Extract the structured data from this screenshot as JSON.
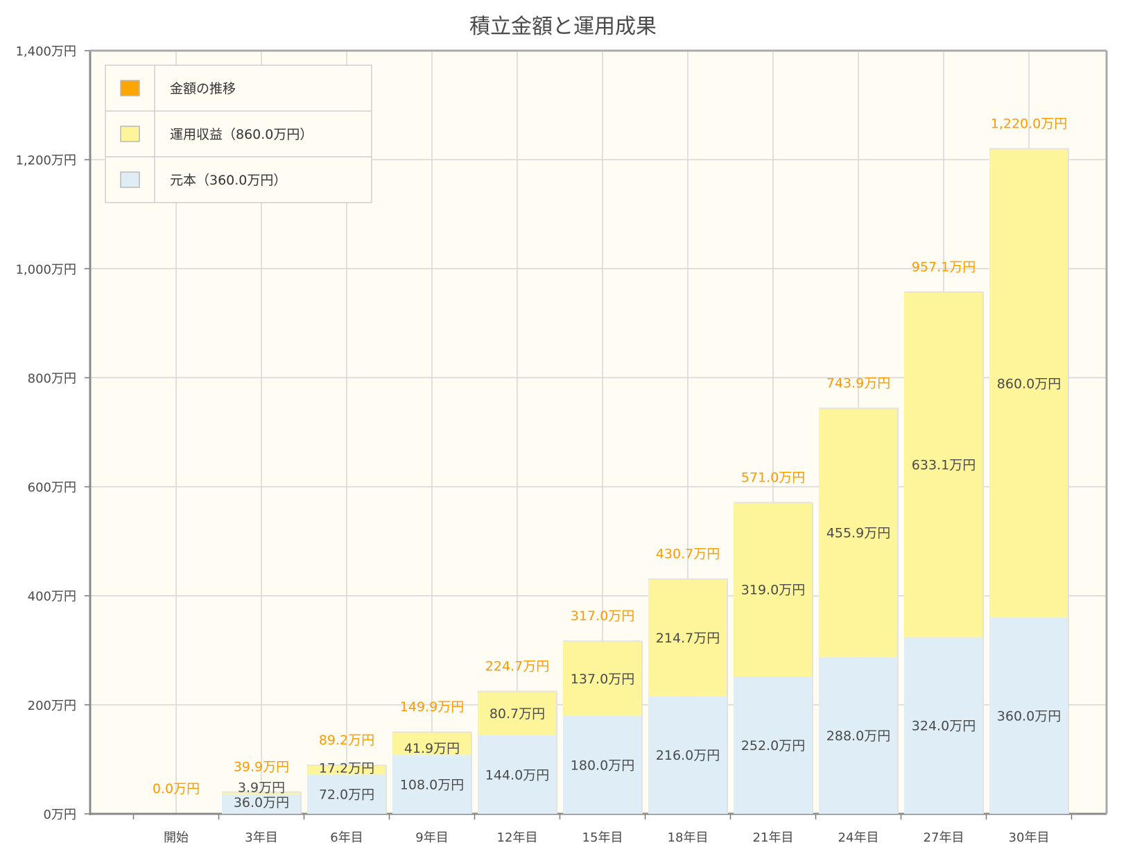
{
  "chart_data": {
    "type": "bar",
    "stacked": true,
    "title": "積立金額と運用成果",
    "categories": [
      "開始",
      "3年目",
      "6年目",
      "9年目",
      "12年目",
      "15年目",
      "18年目",
      "21年目",
      "24年目",
      "27年目",
      "30年目"
    ],
    "series": [
      {
        "name": "元本（360.0万円）",
        "color": "#dfeef6",
        "values": [
          0,
          36.0,
          72.0,
          108.0,
          144.0,
          180.0,
          216.0,
          252.0,
          288.0,
          324.0,
          360.0
        ],
        "labels": [
          "",
          "36.0万円",
          "72.0万円",
          "108.0万円",
          "144.0万円",
          "180.0万円",
          "216.0万円",
          "252.0万円",
          "288.0万円",
          "324.0万円",
          "360.0万円"
        ]
      },
      {
        "name": "運用収益（860.0万円）",
        "color": "#fef59a",
        "values": [
          0,
          3.9,
          17.2,
          41.9,
          80.7,
          137.0,
          214.7,
          319.0,
          455.9,
          633.1,
          860.0
        ],
        "labels": [
          "",
          "3.9万円",
          "17.2万円",
          "41.9万円",
          "80.7万円",
          "137.0万円",
          "214.7万円",
          "319.0万円",
          "455.9万円",
          "633.1万円",
          "860.0万円"
        ]
      }
    ],
    "totals": {
      "name": "金額の推移",
      "color": "#ffa500",
      "values": [
        0.0,
        39.9,
        89.2,
        149.9,
        224.7,
        317.0,
        430.7,
        571.0,
        743.9,
        957.1,
        1220.0
      ],
      "labels": [
        "0.0万円",
        "39.9万円",
        "89.2万円",
        "149.9万円",
        "224.7万円",
        "317.0万円",
        "430.7万円",
        "571.0万円",
        "743.9万円",
        "957.1万円",
        "1,220.0万円"
      ]
    },
    "ylim": [
      0,
      1400
    ],
    "yticks": [
      0,
      200,
      400,
      600,
      800,
      1000,
      1200,
      1400
    ],
    "ytick_labels": [
      "0万円",
      "200万円",
      "400万円",
      "600万円",
      "800万円",
      "1,000万円",
      "1,200万円",
      "1,400万円"
    ],
    "grid": true,
    "legend_position": "top-left",
    "plot_background": "#fffdf3",
    "grid_color": "#d6d6d6"
  }
}
